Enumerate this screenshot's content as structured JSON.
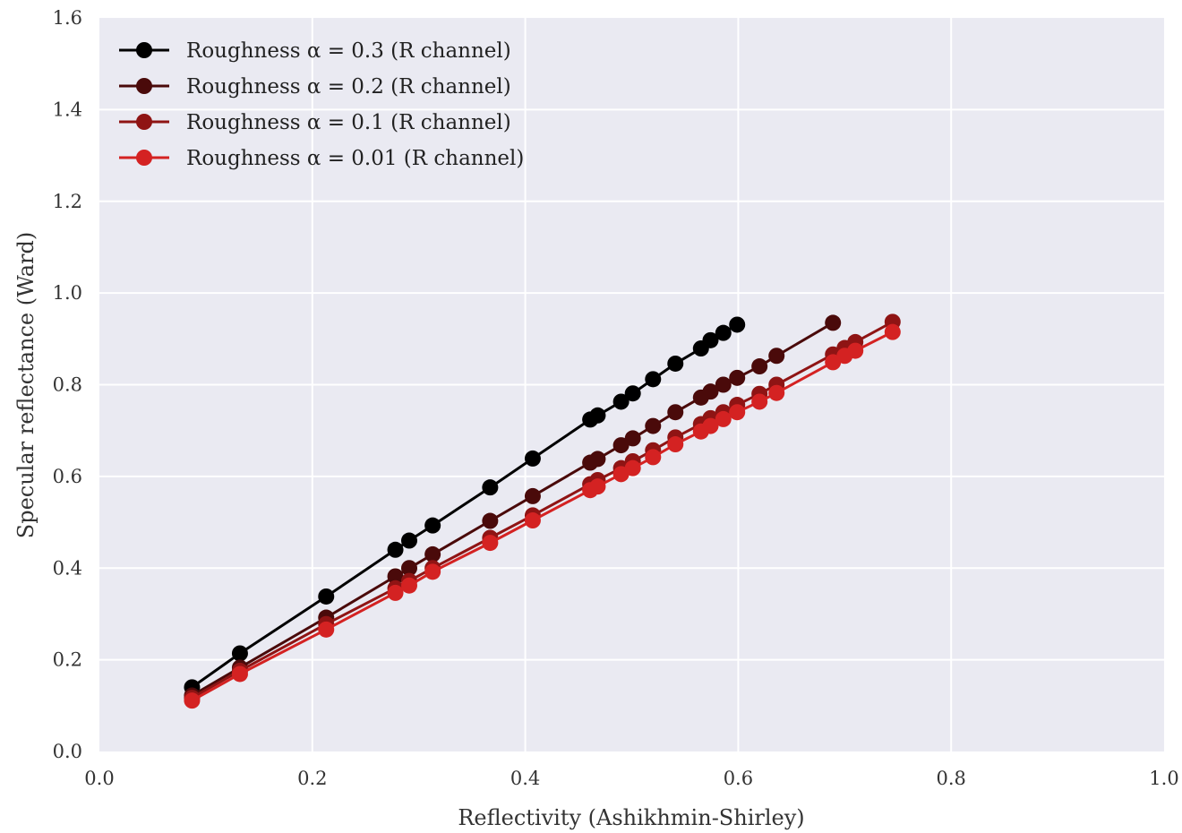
{
  "chart_data": {
    "type": "line",
    "title": "",
    "xlabel": "Reflectivity (Ashikhmin-Shirley)",
    "ylabel": "Specular reflectance (Ward)",
    "xlim": [
      0.0,
      1.0
    ],
    "ylim": [
      0.0,
      1.6
    ],
    "xticks": [
      0.0,
      0.2,
      0.4,
      0.6,
      0.8,
      1.0
    ],
    "xtick_labels": [
      "0.0",
      "0.2",
      "0.4",
      "0.6",
      "0.8",
      "1.0"
    ],
    "yticks": [
      0.0,
      0.2,
      0.4,
      0.6,
      0.8,
      1.0,
      1.2,
      1.4,
      1.6
    ],
    "ytick_labels": [
      "0.0",
      "0.2",
      "0.4",
      "0.6",
      "0.8",
      "1.0",
      "1.2",
      "1.4",
      "1.6"
    ],
    "grid": true,
    "background_color": "#eaeaf2",
    "grid_color": "#ffffff",
    "legend_position": "top-left",
    "series": [
      {
        "name": "Roughness α = 0.3 (R channel)",
        "color": "#000000",
        "x": [
          0.087,
          0.132,
          0.213,
          0.278,
          0.291,
          0.313,
          0.367,
          0.407,
          0.461,
          0.468,
          0.49,
          0.501,
          0.52,
          0.541,
          0.565,
          0.574,
          0.586,
          0.599
        ],
        "y": [
          0.14,
          0.214,
          0.338,
          0.44,
          0.46,
          0.493,
          0.576,
          0.639,
          0.724,
          0.733,
          0.763,
          0.781,
          0.812,
          0.846,
          0.879,
          0.897,
          0.913,
          0.931
        ]
      },
      {
        "name": "Roughness α = 0.2 (R channel)",
        "color": "#4a0a0a",
        "x": [
          0.087,
          0.132,
          0.213,
          0.278,
          0.291,
          0.313,
          0.367,
          0.407,
          0.461,
          0.468,
          0.49,
          0.501,
          0.52,
          0.541,
          0.565,
          0.574,
          0.586,
          0.599,
          0.62,
          0.636,
          0.689
        ],
        "y": [
          0.122,
          0.183,
          0.292,
          0.382,
          0.4,
          0.43,
          0.503,
          0.557,
          0.63,
          0.638,
          0.668,
          0.683,
          0.71,
          0.74,
          0.772,
          0.785,
          0.8,
          0.815,
          0.84,
          0.863,
          0.935
        ]
      },
      {
        "name": "Roughness α = 0.1 (R channel)",
        "color": "#8f1414",
        "x": [
          0.087,
          0.132,
          0.213,
          0.278,
          0.291,
          0.313,
          0.367,
          0.407,
          0.461,
          0.468,
          0.49,
          0.501,
          0.52,
          0.541,
          0.565,
          0.574,
          0.586,
          0.599,
          0.62,
          0.636,
          0.689,
          0.7,
          0.71,
          0.745
        ],
        "y": [
          0.117,
          0.176,
          0.278,
          0.356,
          0.372,
          0.4,
          0.466,
          0.515,
          0.583,
          0.592,
          0.618,
          0.633,
          0.657,
          0.685,
          0.714,
          0.727,
          0.74,
          0.756,
          0.78,
          0.8,
          0.866,
          0.88,
          0.893,
          0.937
        ]
      },
      {
        "name": "Roughness α = 0.01 (R channel)",
        "color": "#d42222",
        "x": [
          0.087,
          0.132,
          0.213,
          0.278,
          0.291,
          0.313,
          0.367,
          0.407,
          0.461,
          0.468,
          0.49,
          0.501,
          0.52,
          0.541,
          0.565,
          0.574,
          0.586,
          0.599,
          0.62,
          0.636,
          0.689,
          0.7,
          0.71,
          0.745
        ],
        "y": [
          0.111,
          0.169,
          0.266,
          0.346,
          0.362,
          0.392,
          0.455,
          0.504,
          0.57,
          0.578,
          0.605,
          0.618,
          0.642,
          0.67,
          0.698,
          0.71,
          0.725,
          0.74,
          0.763,
          0.782,
          0.849,
          0.863,
          0.874,
          0.915
        ]
      }
    ]
  }
}
